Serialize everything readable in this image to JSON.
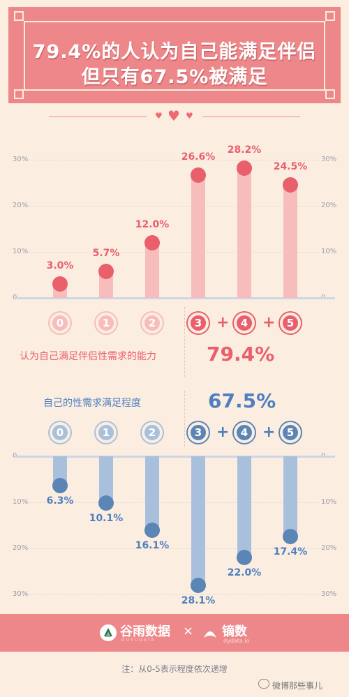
{
  "header": {
    "title_line1": "79.4%的人认为自己能满足伴侣",
    "title_line2": "但只有67.5%被满足"
  },
  "colors": {
    "pink": "#ee8789",
    "pink_bar": "#f7bcbc",
    "pink_dot": "#e95f6c",
    "blue": "#5b8bc3",
    "blue_bar": "#a9c0dc",
    "blue_dot": "#5b85b5",
    "bg": "#fbeee1"
  },
  "chart_data": [
    {
      "type": "bar",
      "caption": "认为自己满足伴侣性需求的能力",
      "total": "79.4%",
      "categories": [
        "0",
        "1",
        "2",
        "3",
        "4",
        "5"
      ],
      "values": [
        3.0,
        5.7,
        12.0,
        26.6,
        28.2,
        24.5
      ],
      "labels": [
        "3.0%",
        "5.7%",
        "12.0%",
        "26.6%",
        "28.2%",
        "24.5%"
      ],
      "ylim": [
        0,
        30
      ],
      "yticks": [
        "0",
        "10%",
        "20%",
        "30%"
      ]
    },
    {
      "type": "bar",
      "caption": "自己的性需求满足程度",
      "total": "67.5%",
      "categories": [
        "0",
        "1",
        "2",
        "3",
        "4",
        "5"
      ],
      "values": [
        6.3,
        10.1,
        16.1,
        28.1,
        22.0,
        17.4
      ],
      "labels": [
        "6.3%",
        "10.1%",
        "16.1%",
        "28.1%",
        "22.0%",
        "17.4%"
      ],
      "ylim": [
        0,
        30
      ],
      "yticks": [
        "0",
        "10%",
        "20%",
        "30%"
      ]
    }
  ],
  "plus_sign": "+",
  "footer": {
    "brand1": "谷雨数据",
    "brand1_sub": "GUYUDATA",
    "times": "×",
    "brand2": "镝数",
    "brand2_sub": "dydata.io"
  },
  "note": "注：从0-5表示程度依次递增",
  "watermark": "微博那些事儿"
}
